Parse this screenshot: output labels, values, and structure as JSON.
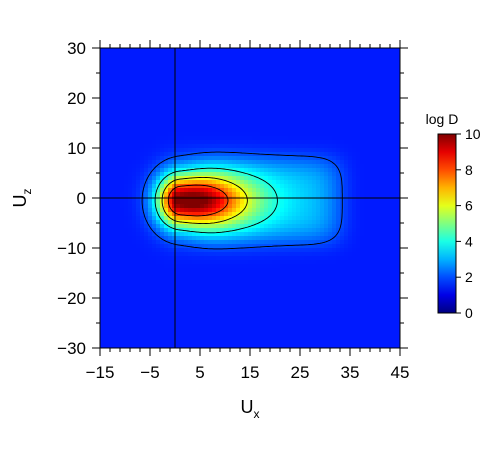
{
  "chart_data": {
    "type": "heatmap",
    "title": "",
    "xlabel": {
      "main": "U",
      "sub": "x"
    },
    "ylabel": {
      "main": "U",
      "sub": "z"
    },
    "xlim": [
      -15,
      45
    ],
    "ylim": [
      -30,
      30
    ],
    "x_ticks": [
      -15,
      -5,
      5,
      15,
      25,
      35,
      45
    ],
    "x_tick_labels": [
      "−15",
      "−5",
      "5",
      "15",
      "25",
      "35",
      "45"
    ],
    "y_ticks": [
      -30,
      -20,
      -10,
      0,
      10,
      20,
      30
    ],
    "y_tick_labels": [
      "−30",
      "−20",
      "−10",
      "0",
      "10",
      "20",
      "30"
    ],
    "reference_lines": {
      "x": 0,
      "y": 0
    },
    "colorbar": {
      "label": "log D",
      "range": [
        0,
        10
      ],
      "ticks": [
        0,
        2,
        4,
        6,
        8,
        10
      ],
      "tick_labels": [
        "0",
        "2",
        "4",
        "6",
        "8",
        "10"
      ],
      "colormap": "jet"
    },
    "distribution": {
      "peak": [
        1,
        -0.5
      ],
      "peak_value": 10,
      "contour_levels": [
        2,
        4,
        6,
        8
      ]
    }
  }
}
